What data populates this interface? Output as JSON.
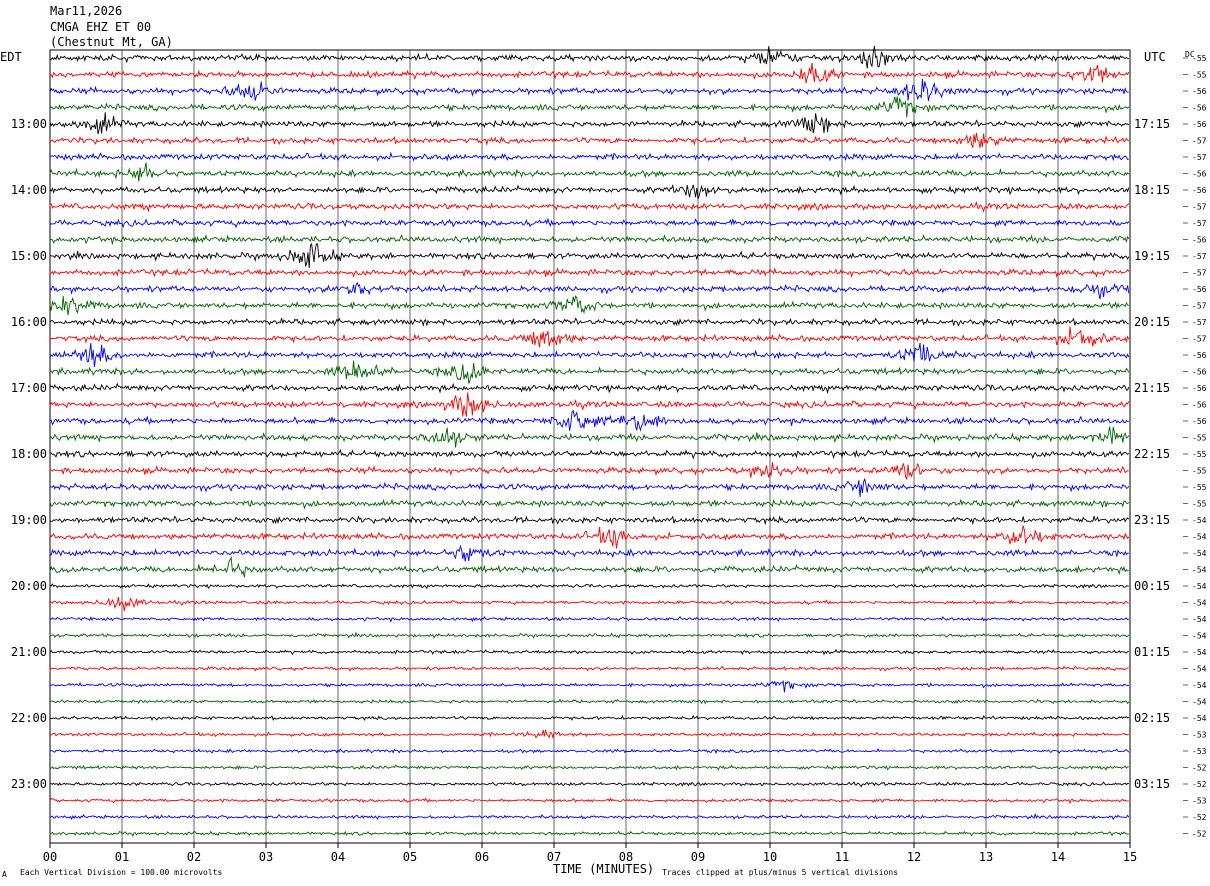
{
  "header": {
    "date": "Mar11,2026",
    "station": "CMGA EHZ ET 00",
    "location": "(Chestnut Mt, GA)"
  },
  "footer": {
    "scale_note": "Each Vertical Division =  100.00 microvolts",
    "clip_note": "Traces clipped at plus/minus 5 vertical divisions",
    "corner_mark": "A"
  },
  "chart_data": {
    "type": "line",
    "title": "",
    "xlabel": "TIME (MINUTES)",
    "left_axis_label": "EDT",
    "right_axis_label": "UTC",
    "dc_label": "DC",
    "x_ticks": [
      "00",
      "01",
      "02",
      "03",
      "04",
      "05",
      "06",
      "07",
      "08",
      "09",
      "10",
      "11",
      "12",
      "13",
      "14",
      "15"
    ],
    "xlim": [
      0,
      15
    ],
    "grid": true,
    "trace_colors": [
      "#000000",
      "#ff0000",
      "#0000ff",
      "#006400"
    ],
    "left_hour_labels": [
      {
        "row": 4,
        "label": "13:00"
      },
      {
        "row": 8,
        "label": "14:00"
      },
      {
        "row": 12,
        "label": "15:00"
      },
      {
        "row": 16,
        "label": "16:00"
      },
      {
        "row": 20,
        "label": "17:00"
      },
      {
        "row": 24,
        "label": "18:00"
      },
      {
        "row": 28,
        "label": "19:00"
      },
      {
        "row": 32,
        "label": "20:00"
      },
      {
        "row": 36,
        "label": "21:00"
      },
      {
        "row": 40,
        "label": "22:00"
      },
      {
        "row": 44,
        "label": "23:00"
      }
    ],
    "right_hour_labels": [
      {
        "row": 4,
        "label": "17:15"
      },
      {
        "row": 8,
        "label": "18:15"
      },
      {
        "row": 12,
        "label": "19:15"
      },
      {
        "row": 16,
        "label": "20:15"
      },
      {
        "row": 20,
        "label": "21:15"
      },
      {
        "row": 24,
        "label": "22:15"
      },
      {
        "row": 28,
        "label": "23:15"
      },
      {
        "row": 32,
        "label": "00:15"
      },
      {
        "row": 36,
        "label": "01:15"
      },
      {
        "row": 40,
        "label": "02:15"
      },
      {
        "row": 44,
        "label": "03:15"
      }
    ],
    "dc_offsets": [
      "-55",
      "-55",
      "-56",
      "-56",
      "-56",
      "-57",
      "-57",
      "-56",
      "-56",
      "-57",
      "-57",
      "-56",
      "-57",
      "-57",
      "-56",
      "-57",
      "-57",
      "-57",
      "-56",
      "-56",
      "-56",
      "-56",
      "-56",
      "-55",
      "-55",
      "-55",
      "-55",
      "-55",
      "-54",
      "-54",
      "-54",
      "-54",
      "-54",
      "-54",
      "-54",
      "-54",
      "-54",
      "-54",
      "-54",
      "-54",
      "-54",
      "-53",
      "-53",
      "-52",
      "-52",
      "-53",
      "-52",
      "-52"
    ],
    "events": [
      {
        "row": 0,
        "minute": 10.0,
        "amplitude": 1.6
      },
      {
        "row": 0,
        "minute": 11.4,
        "amplitude": 1.3
      },
      {
        "row": 1,
        "minute": 10.6,
        "amplitude": 1.4
      },
      {
        "row": 1,
        "minute": 14.5,
        "amplitude": 1.6
      },
      {
        "row": 2,
        "minute": 2.8,
        "amplitude": 1.5
      },
      {
        "row": 2,
        "minute": 12.1,
        "amplitude": 2.0
      },
      {
        "row": 3,
        "minute": 11.8,
        "amplitude": 1.3
      },
      {
        "row": 4,
        "minute": 0.7,
        "amplitude": 1.3
      },
      {
        "row": 4,
        "minute": 10.6,
        "amplitude": 1.3
      },
      {
        "row": 5,
        "minute": 12.9,
        "amplitude": 1.2
      },
      {
        "row": 7,
        "minute": 1.3,
        "amplitude": 1.2
      },
      {
        "row": 8,
        "minute": 9.0,
        "amplitude": 1.2
      },
      {
        "row": 12,
        "minute": 3.6,
        "amplitude": 2.2
      },
      {
        "row": 14,
        "minute": 4.3,
        "amplitude": 1.2
      },
      {
        "row": 14,
        "minute": 14.6,
        "amplitude": 1.3
      },
      {
        "row": 15,
        "minute": 0.3,
        "amplitude": 1.4
      },
      {
        "row": 15,
        "minute": 7.3,
        "amplitude": 1.3
      },
      {
        "row": 17,
        "minute": 6.9,
        "amplitude": 1.6
      },
      {
        "row": 17,
        "minute": 14.3,
        "amplitude": 1.8
      },
      {
        "row": 18,
        "minute": 0.6,
        "amplitude": 1.7
      },
      {
        "row": 18,
        "minute": 12.1,
        "amplitude": 1.8
      },
      {
        "row": 19,
        "minute": 4.3,
        "amplitude": 1.6
      },
      {
        "row": 19,
        "minute": 5.8,
        "amplitude": 1.5
      },
      {
        "row": 21,
        "minute": 5.8,
        "amplitude": 2.0
      },
      {
        "row": 22,
        "minute": 7.3,
        "amplitude": 2.0
      },
      {
        "row": 22,
        "minute": 8.2,
        "amplitude": 1.8
      },
      {
        "row": 23,
        "minute": 5.5,
        "amplitude": 1.4
      },
      {
        "row": 23,
        "minute": 14.7,
        "amplitude": 1.3
      },
      {
        "row": 25,
        "minute": 10.0,
        "amplitude": 1.2
      },
      {
        "row": 25,
        "minute": 11.9,
        "amplitude": 1.2
      },
      {
        "row": 26,
        "minute": 11.3,
        "amplitude": 1.2
      },
      {
        "row": 29,
        "minute": 7.8,
        "amplitude": 1.4
      },
      {
        "row": 29,
        "minute": 13.5,
        "amplitude": 1.8
      },
      {
        "row": 30,
        "minute": 5.8,
        "amplitude": 1.2
      },
      {
        "row": 31,
        "minute": 2.5,
        "amplitude": 1.3
      },
      {
        "row": 33,
        "minute": 1.0,
        "amplitude": 2.0
      },
      {
        "row": 38,
        "minute": 10.2,
        "amplitude": 1.1
      },
      {
        "row": 41,
        "minute": 6.9,
        "amplitude": 1.1
      }
    ]
  }
}
